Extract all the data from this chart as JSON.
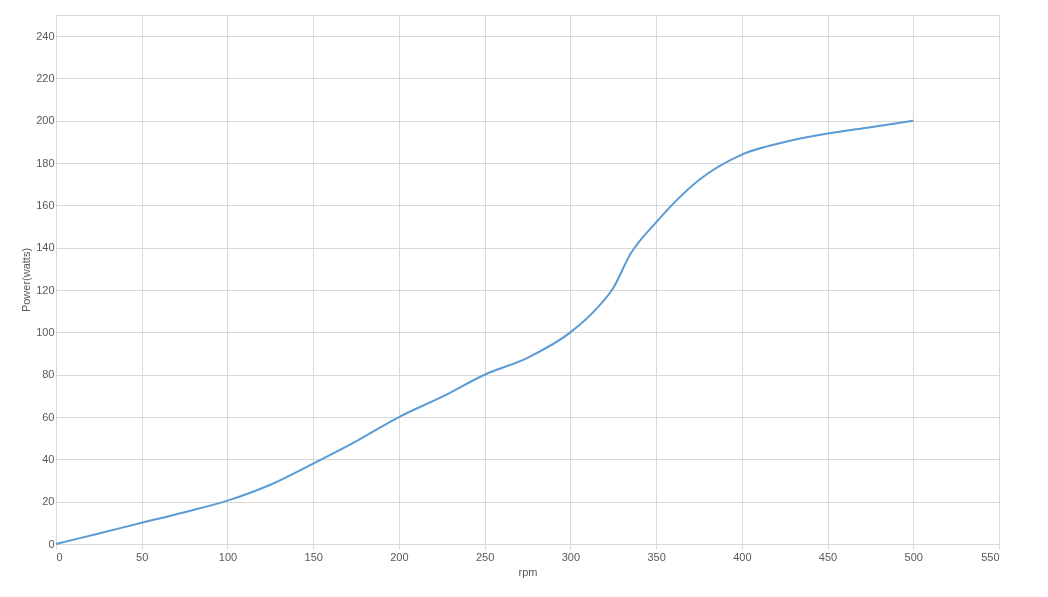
{
  "chart_data": {
    "type": "line",
    "xlabel": "rpm",
    "ylabel": "Power(watts)",
    "x": [
      0,
      25,
      50,
      75,
      100,
      125,
      150,
      175,
      200,
      225,
      250,
      275,
      300,
      315,
      325,
      335,
      350,
      375,
      400,
      425,
      450,
      475,
      500
    ],
    "series": [
      {
        "color": "#5b9bd5",
        "values": [
          0,
          5,
          10,
          15,
          20.5,
          28,
          38,
          48.5,
          60,
          69.5,
          80,
          88,
          100,
          111,
          121,
          137,
          152,
          172,
          184,
          190,
          194,
          197,
          200
        ]
      }
    ],
    "xlim": [
      0,
      550
    ],
    "xticks": [
      0,
      50,
      100,
      150,
      200,
      250,
      300,
      350,
      400,
      450,
      500,
      550
    ],
    "ylim": [
      0,
      250
    ],
    "yticks": [
      0,
      20,
      40,
      60,
      80,
      100,
      120,
      140,
      160,
      180,
      200,
      220,
      240
    ],
    "grid": true,
    "marker": "none",
    "line_style": "solid"
  }
}
